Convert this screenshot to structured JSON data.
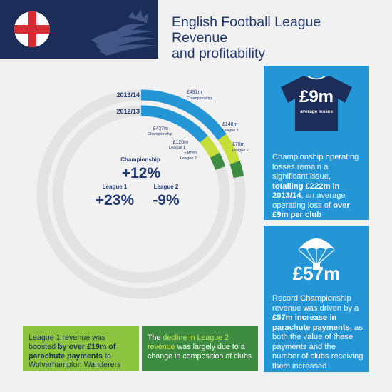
{
  "header": {
    "title_line1": "English Football League Revenue",
    "title_line2": "and profitability"
  },
  "chart_data": {
    "type": "pie",
    "variant": "concentric-rings",
    "rings": [
      {
        "name": "2013/14",
        "segments": [
          {
            "name": "Championship",
            "value": 491,
            "label_value": "£491m",
            "label_name": "Championship",
            "color": "#2496d6"
          },
          {
            "name": "League 1",
            "value": 148,
            "label_value": "£148m",
            "label_name": "League 1",
            "color": "#c6de3a"
          },
          {
            "name": "League 2",
            "value": 78,
            "label_value": "£78m",
            "label_name": "League 2",
            "color": "#3d8c41"
          }
        ]
      },
      {
        "name": "2012/13",
        "segments": [
          {
            "name": "Championship",
            "value": 437,
            "label_value": "£437m",
            "label_name": "Championship",
            "color": "#2496d6"
          },
          {
            "name": "League 1",
            "value": 120,
            "label_value": "£120m",
            "label_name": "League 1",
            "color": "#c6de3a"
          },
          {
            "name": "League 2",
            "value": 86,
            "label_value": "£86m",
            "label_name": "League 2",
            "color": "#3d8c41"
          }
        ]
      }
    ],
    "changes": [
      {
        "name": "Championship",
        "value": "+12%"
      },
      {
        "name": "League 1",
        "value": "+23%"
      },
      {
        "name": "League 2",
        "value": "-9%"
      }
    ],
    "track_color": "#e3e3e3"
  },
  "losses_panel": {
    "big_value": "£9m",
    "big_sub": "average losses",
    "t1": "Championship operating losses remain a significant issue, ",
    "t2": "totalling £222m in 2013/14",
    "t3": ", an average operating loss of ",
    "t4": "over £9m per club"
  },
  "parachute_panel": {
    "big_value": "£57m",
    "t1": "Record Championship revenue was driven by a ",
    "t2": "£57m increase in parachute payments",
    "t3": ", as both the value of these payments and the number of clubs receiving them increased"
  },
  "league1_box": {
    "t1": "League 1 revenue was boosted ",
    "t2": "by over £19m of parachute payments",
    "t3": " to Wolverhampton Wanderers"
  },
  "league2_box": {
    "t1": "The ",
    "t2": "decline in League 2 revenue",
    "t3": " was largely due to a change in composition of clubs"
  },
  "colors": {
    "navy": "#1c2d5a",
    "blue": "#2496d6",
    "lime": "#c6de3a",
    "green": "#3d8c41",
    "flag_red": "#d52b34"
  }
}
